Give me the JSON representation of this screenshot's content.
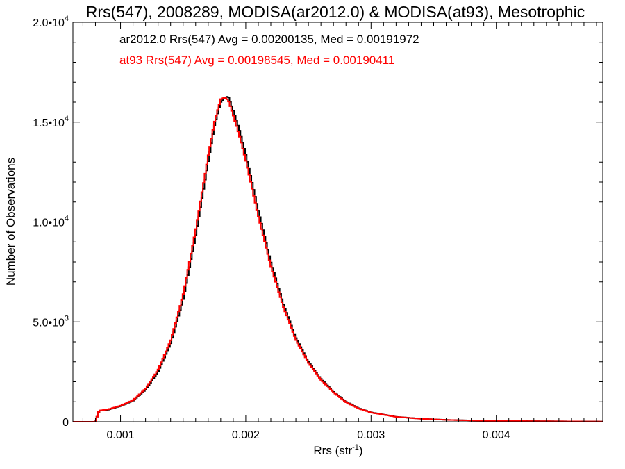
{
  "chart_data": {
    "type": "line",
    "title": "Rrs(547), 2008289, MODISA(ar2012.0) & MODISA(at93), Mesotrophic",
    "xlabel": "Rrs (str",
    "xlabel_sup": "-1",
    "xlabel_end": ")",
    "ylabel": "Number of Observations",
    "xlim": [
      0.00062,
      0.00485
    ],
    "ylim": [
      0,
      20000
    ],
    "grid": false,
    "x_ticks": [
      {
        "value": 0.001,
        "label": "0.001"
      },
      {
        "value": 0.002,
        "label": "0.002"
      },
      {
        "value": 0.003,
        "label": "0.003"
      },
      {
        "value": 0.004,
        "label": "0.004"
      }
    ],
    "y_ticks": [
      {
        "value": 0,
        "mant": "0",
        "exp": ""
      },
      {
        "value": 5000,
        "mant": "5.0•10",
        "exp": "3"
      },
      {
        "value": 10000,
        "mant": "1.0•10",
        "exp": "4"
      },
      {
        "value": 15000,
        "mant": "1.5•10",
        "exp": "4"
      },
      {
        "value": 20000,
        "mant": "2.0•10",
        "exp": "4"
      }
    ],
    "annotations": [
      {
        "text": "ar2012.0 Rrs(547) Avg = 0.00200135, Med = 0.00191972",
        "color": "#000000"
      },
      {
        "text": "at93 Rrs(547) Avg = 0.00198545, Med = 0.00190411",
        "color": "#ff0000"
      }
    ],
    "series": [
      {
        "color": "#000000",
        "points": [
          [
            0.00062,
            0
          ],
          [
            0.0008,
            0
          ],
          [
            0.00083,
            550
          ],
          [
            0.0009,
            600
          ],
          [
            0.001,
            780
          ],
          [
            0.0011,
            1050
          ],
          [
            0.0012,
            1600
          ],
          [
            0.0013,
            2500
          ],
          [
            0.0014,
            3900
          ],
          [
            0.0015,
            6100
          ],
          [
            0.0016,
            9300
          ],
          [
            0.0017,
            13000
          ],
          [
            0.00175,
            14800
          ],
          [
            0.0018,
            16000
          ],
          [
            0.00183,
            16200
          ],
          [
            0.00186,
            16300
          ],
          [
            0.0019,
            15600
          ],
          [
            0.00195,
            14600
          ],
          [
            0.002,
            13400
          ],
          [
            0.0021,
            10600
          ],
          [
            0.0022,
            8000
          ],
          [
            0.0023,
            5900
          ],
          [
            0.0024,
            4200
          ],
          [
            0.0025,
            3000
          ],
          [
            0.0026,
            2150
          ],
          [
            0.0027,
            1500
          ],
          [
            0.0028,
            1000
          ],
          [
            0.0029,
            680
          ],
          [
            0.003,
            470
          ],
          [
            0.0032,
            250
          ],
          [
            0.0034,
            150
          ],
          [
            0.0036,
            95
          ],
          [
            0.0038,
            65
          ],
          [
            0.004,
            45
          ],
          [
            0.0043,
            30
          ],
          [
            0.0046,
            18
          ],
          [
            0.00485,
            10
          ]
        ]
      },
      {
        "color": "#ff0000",
        "points": [
          [
            0.00062,
            0
          ],
          [
            0.0008,
            0
          ],
          [
            0.00083,
            560
          ],
          [
            0.0009,
            620
          ],
          [
            0.001,
            800
          ],
          [
            0.0011,
            1080
          ],
          [
            0.0012,
            1650
          ],
          [
            0.0013,
            2600
          ],
          [
            0.0014,
            4050
          ],
          [
            0.0015,
            6350
          ],
          [
            0.0016,
            9600
          ],
          [
            0.0017,
            13300
          ],
          [
            0.00175,
            15000
          ],
          [
            0.0018,
            16150
          ],
          [
            0.00183,
            16250
          ],
          [
            0.00186,
            16100
          ],
          [
            0.0019,
            15350
          ],
          [
            0.00195,
            14300
          ],
          [
            0.002,
            13100
          ],
          [
            0.0021,
            10300
          ],
          [
            0.0022,
            7800
          ],
          [
            0.0023,
            5750
          ],
          [
            0.0024,
            4100
          ],
          [
            0.0025,
            2950
          ],
          [
            0.0026,
            2100
          ],
          [
            0.0027,
            1470
          ],
          [
            0.0028,
            980
          ],
          [
            0.0029,
            665
          ],
          [
            0.003,
            460
          ],
          [
            0.0032,
            245
          ],
          [
            0.0034,
            148
          ],
          [
            0.0036,
            93
          ],
          [
            0.0038,
            63
          ],
          [
            0.004,
            44
          ],
          [
            0.0043,
            29
          ],
          [
            0.0046,
            17
          ],
          [
            0.00485,
            10
          ]
        ]
      }
    ]
  }
}
